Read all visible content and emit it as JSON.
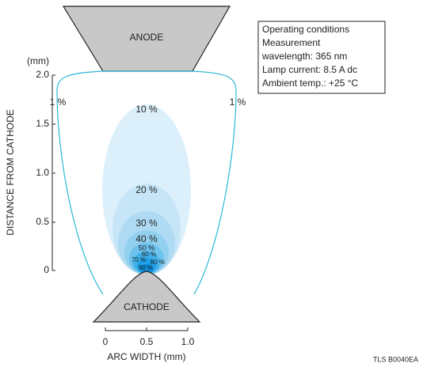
{
  "anode": {
    "label": "ANODE"
  },
  "cathode": {
    "label": "CATHODE"
  },
  "conditions": [
    "Operating conditions",
    "Measurement",
    "wavelength: 365 nm",
    "Lamp current: 8.5 A dc",
    "Ambient temp.: +25 °C"
  ],
  "y_axis": {
    "title": "DISTANCE FROM CATHODE",
    "unit": "(mm)",
    "ticks": [
      "2.0",
      "1.5",
      "1.0",
      "0.5",
      "0"
    ]
  },
  "x_axis": {
    "title": "ARC WIDTH (mm)",
    "ticks": [
      "0",
      "0.5",
      "1.0"
    ]
  },
  "contours": {
    "outer_left": "1 %",
    "outer_right": "1 %",
    "levels": [
      "10 %",
      "20 %",
      "30 %",
      "40 %",
      "50 %",
      "60 %",
      "70 %",
      "80 %",
      "90 %"
    ]
  },
  "code": "TLS B0040EA"
}
